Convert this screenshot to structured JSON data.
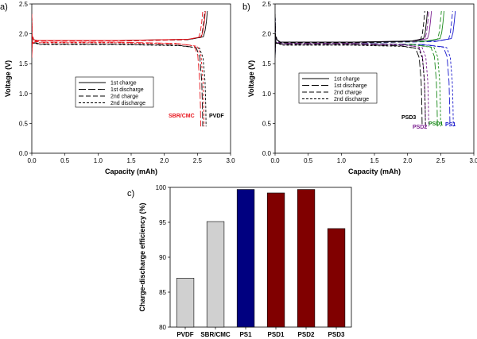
{
  "chart_data": [
    {
      "type": "line",
      "panel_label": "a)",
      "xlabel": "Capacity (mAh)",
      "ylabel": "Voltage (V)",
      "xlim": [
        0,
        3.0
      ],
      "ylim": [
        0,
        2.5
      ],
      "xticks": [
        "0.0",
        "0.5",
        "1.0",
        "1.5",
        "2.0",
        "2.5",
        "3.0"
      ],
      "yticks": [
        "0.0",
        "0.5",
        "1.0",
        "1.5",
        "2.0",
        "2.5"
      ],
      "legend": [
        "1st charge",
        "1st discharge",
        "2nd charge",
        "2nd discharge"
      ],
      "legend_placement": "center",
      "annotations": [
        {
          "text": "SBR/CMC",
          "color": "#e8141c"
        },
        {
          "text": "PVDF",
          "color": "#000000"
        }
      ],
      "series": [
        {
          "name": "PVDF",
          "color": "#000000",
          "charge_capacity": 2.65,
          "discharge_capacity": 2.58,
          "plateau_charge": 1.89,
          "plateau_discharge": 1.83
        },
        {
          "name": "SBR/CMC",
          "color": "#e8141c",
          "charge_capacity": 2.62,
          "discharge_capacity": 2.55,
          "plateau_charge": 1.89,
          "plateau_discharge": 1.86
        }
      ]
    },
    {
      "type": "line",
      "panel_label": "b)",
      "xlabel": "Capacity (mAh)",
      "ylabel": "Voltage (V)",
      "xlim": [
        0,
        3.0
      ],
      "ylim": [
        0,
        2.5
      ],
      "xticks": [
        "0.0",
        "0.5",
        "1.0",
        "1.5",
        "2.0",
        "2.5",
        "3.0"
      ],
      "yticks": [
        "0.0",
        "0.5",
        "1.0",
        "1.5",
        "2.0",
        "2.5"
      ],
      "legend": [
        "1st charge",
        "1st discharge",
        "2nd charge",
        "2nd discharge"
      ],
      "legend_placement": "right",
      "annotations": [
        {
          "text": "PSD3",
          "color": "#000000"
        },
        {
          "text": "PSD2",
          "color": "#7b1f8f"
        },
        {
          "text": "PSD1",
          "color": "#1a8a1a"
        },
        {
          "text": "PS1",
          "color": "#1a1acd"
        }
      ],
      "series": [
        {
          "name": "PS1",
          "color": "#1a1acd",
          "charge_capacity": 2.72,
          "discharge_capacity": 2.64,
          "plateau_charge": 1.86,
          "plateau_discharge": 1.84
        },
        {
          "name": "PSD1",
          "color": "#1a8a1a",
          "charge_capacity": 2.55,
          "discharge_capacity": 2.45,
          "plateau_charge": 1.86,
          "plateau_discharge": 1.84
        },
        {
          "name": "PSD2",
          "color": "#7b1f8f",
          "charge_capacity": 2.36,
          "discharge_capacity": 2.27,
          "plateau_charge": 1.86,
          "plateau_discharge": 1.84
        },
        {
          "name": "PSD3",
          "color": "#000000",
          "charge_capacity": 2.3,
          "discharge_capacity": 2.22,
          "plateau_charge": 1.86,
          "plateau_discharge": 1.82
        }
      ]
    },
    {
      "type": "bar",
      "panel_label": "c)",
      "ylabel": "Charge-discharge efficiency (%)",
      "ylim": [
        80,
        100
      ],
      "yticks": [
        "80",
        "85",
        "90",
        "95",
        "100"
      ],
      "categories": [
        "PVDF",
        "SBR/CMC",
        "PS1",
        "PSD1",
        "PSD2",
        "PSD3"
      ],
      "values": [
        87.0,
        95.1,
        99.7,
        99.2,
        99.7,
        94.1
      ],
      "colors": [
        "#d0d0d0",
        "#d0d0d0",
        "#000080",
        "#800000",
        "#800000",
        "#800000"
      ]
    }
  ]
}
